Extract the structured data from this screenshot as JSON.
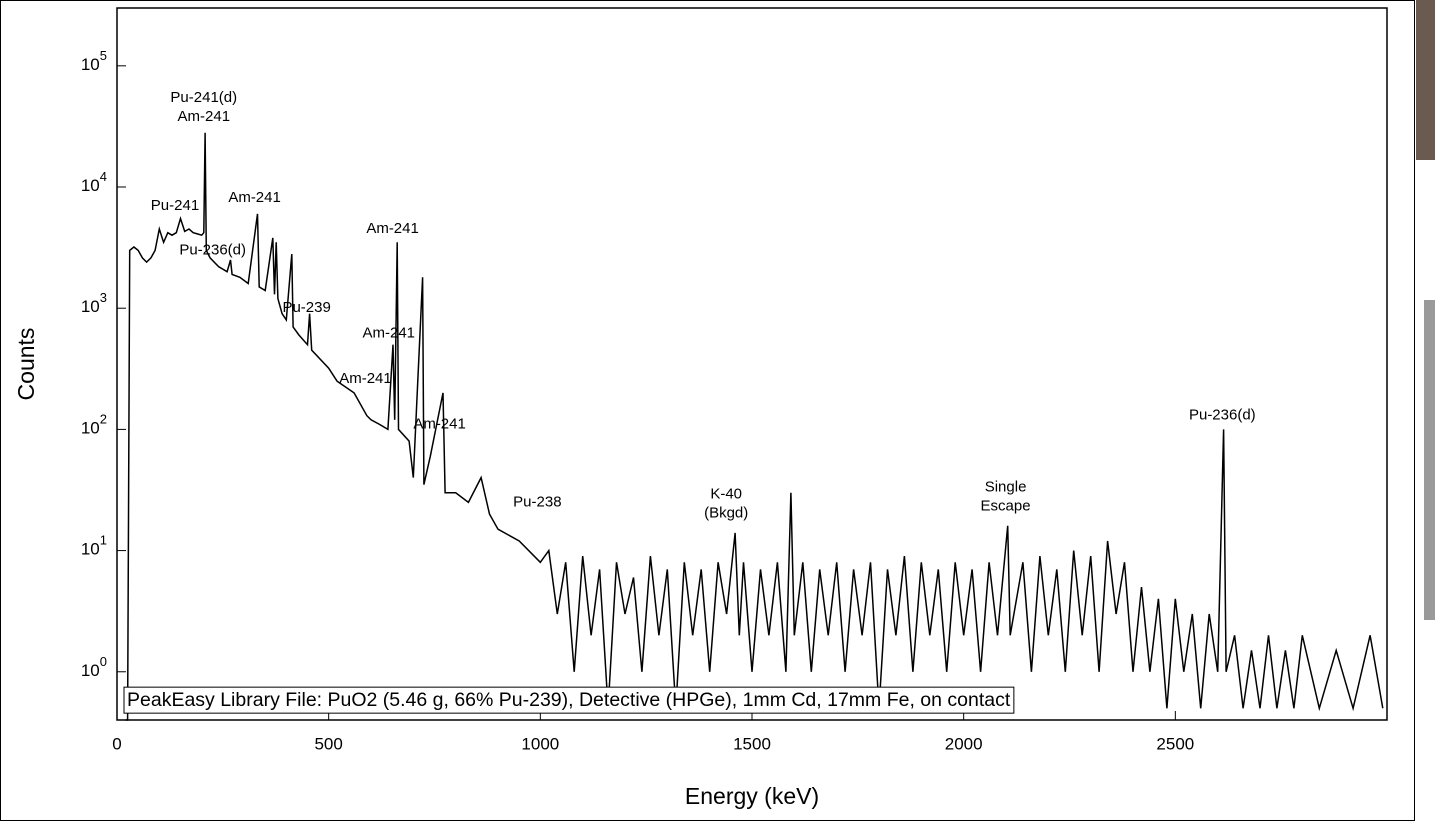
{
  "chart_data": {
    "type": "line",
    "xlabel": "Energy (keV)",
    "ylabel": "Counts",
    "log_y": true,
    "xlim": [
      0,
      3000
    ],
    "ylim": [
      0.4,
      300000
    ],
    "xticks": [
      0,
      500,
      1000,
      1500,
      2000,
      2500
    ],
    "yticks": [
      {
        "value": 1,
        "base": "10",
        "exponent": "0"
      },
      {
        "value": 10,
        "base": "10",
        "exponent": "1"
      },
      {
        "value": 100,
        "base": "10",
        "exponent": "2"
      },
      {
        "value": 1000,
        "base": "10",
        "exponent": "3"
      },
      {
        "value": 10000,
        "base": "10",
        "exponent": "4"
      },
      {
        "value": 100000,
        "base": "10",
        "exponent": "5"
      }
    ],
    "series": [
      {
        "color": "#000000",
        "x": [
          20,
          25,
          30,
          40,
          50,
          60,
          70,
          80,
          90,
          100,
          110,
          120,
          130,
          140,
          150,
          160,
          170,
          180,
          190,
          200,
          205,
          208,
          211,
          220,
          240,
          260,
          268,
          272,
          290,
          310,
          332,
          336,
          350,
          368,
          372,
          376,
          380,
          390,
          400,
          413,
          416,
          430,
          450,
          455,
          460,
          500,
          520,
          560,
          590,
          600,
          620,
          640,
          645,
          652,
          656,
          662,
          665,
          690,
          700,
          722,
          725,
          740,
          770,
          775,
          800,
          830,
          860,
          880,
          900,
          950,
          1000,
          1020,
          1040,
          1060,
          1080,
          1100,
          1120,
          1140,
          1160,
          1180,
          1200,
          1220,
          1240,
          1260,
          1280,
          1300,
          1320,
          1340,
          1360,
          1380,
          1400,
          1420,
          1440,
          1460,
          1470,
          1480,
          1500,
          1520,
          1540,
          1560,
          1580,
          1592,
          1600,
          1620,
          1640,
          1660,
          1680,
          1700,
          1720,
          1740,
          1760,
          1780,
          1800,
          1820,
          1840,
          1860,
          1880,
          1900,
          1920,
          1940,
          1960,
          1980,
          2000,
          2020,
          2040,
          2060,
          2080,
          2104,
          2110,
          2140,
          2160,
          2180,
          2200,
          2220,
          2240,
          2260,
          2280,
          2300,
          2320,
          2340,
          2360,
          2380,
          2400,
          2420,
          2440,
          2460,
          2480,
          2500,
          2520,
          2540,
          2560,
          2580,
          2600,
          2614,
          2620,
          2640,
          2660,
          2680,
          2700,
          2720,
          2740,
          2760,
          2780,
          2800,
          2840,
          2880,
          2920,
          2960,
          2990
        ],
        "values": [
          0.4,
          0.4,
          3000,
          3200,
          3000,
          2600,
          2400,
          2600,
          3000,
          4500,
          3500,
          4200,
          4000,
          4200,
          5500,
          4300,
          4500,
          4200,
          4100,
          4000,
          4200,
          28000,
          3000,
          2600,
          2200,
          2000,
          2500,
          1900,
          1800,
          1600,
          6000,
          1500,
          1400,
          3800,
          1300,
          3500,
          1200,
          900,
          800,
          2800,
          700,
          600,
          500,
          900,
          450,
          320,
          250,
          200,
          130,
          120,
          110,
          100,
          200,
          500,
          120,
          3500,
          100,
          80,
          40,
          1800,
          35,
          60,
          200,
          30,
          30,
          25,
          40,
          20,
          15,
          12,
          8,
          10,
          3,
          8,
          1,
          9,
          2,
          7,
          0.5,
          8,
          3,
          6,
          1,
          9,
          2,
          7,
          0.5,
          8,
          2,
          7,
          1,
          8,
          3,
          14,
          2,
          8,
          1,
          7,
          2,
          8,
          1,
          30,
          2,
          8,
          1,
          7,
          2,
          8,
          1,
          7,
          2,
          8,
          0.5,
          7,
          2,
          9,
          1,
          8,
          2,
          7,
          1,
          8,
          2,
          7,
          1,
          8,
          2,
          16,
          2,
          8,
          1,
          9,
          2,
          7,
          1,
          10,
          2,
          9,
          1,
          12,
          3,
          8,
          1,
          5,
          1,
          4,
          0.5,
          4,
          1,
          3,
          0.5,
          3,
          1,
          100,
          1,
          2,
          0.5,
          1.5,
          0.5,
          2,
          0.5,
          1.5,
          0.5,
          2,
          0.5,
          1.5,
          0.5,
          2,
          0.5
        ]
      }
    ],
    "annotations": [
      {
        "lines": [
          "Pu-241(d)",
          "Am-241"
        ],
        "x": 205,
        "y": 54000
      },
      {
        "lines": [
          "Pu-241"
        ],
        "x": 137,
        "y": 7000
      },
      {
        "lines": [
          "Am-241"
        ],
        "x": 325,
        "y": 8100
      },
      {
        "lines": [
          "Pu-236(d)"
        ],
        "x": 226,
        "y": 3000
      },
      {
        "lines": [
          "Am-241"
        ],
        "x": 651,
        "y": 4500
      },
      {
        "lines": [
          "Pu-239"
        ],
        "x": 448,
        "y": 1000
      },
      {
        "lines": [
          "Am-241"
        ],
        "x": 642,
        "y": 620
      },
      {
        "lines": [
          "Am-241"
        ],
        "x": 587,
        "y": 260
      },
      {
        "lines": [
          "Am-241"
        ],
        "x": 762,
        "y": 110
      },
      {
        "lines": [
          "Pu-238"
        ],
        "x": 993,
        "y": 25
      },
      {
        "lines": [
          "K-40",
          "(Bkgd)"
        ],
        "x": 1439,
        "y": 29
      },
      {
        "lines": [
          "Single",
          "Escape"
        ],
        "x": 2099,
        "y": 33
      },
      {
        "lines": [
          "Pu-236(d)"
        ],
        "x": 2611,
        "y": 130
      }
    ],
    "caption": "PeakEasy Library File: PuO2 (5.46 g, 66% Pu-239), Detective (HPGe), 1mm Cd, 17mm Fe, on contact"
  }
}
